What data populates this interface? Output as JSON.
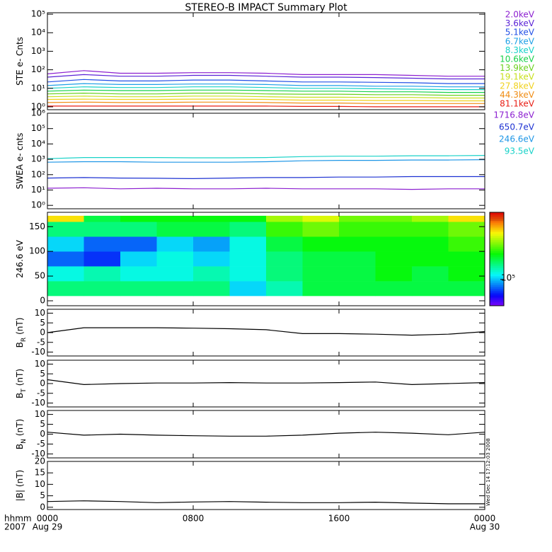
{
  "title": "STEREO-B IMPACT Summary Plot",
  "time_unit": "hhmm",
  "year": "2007",
  "timestamp": "Wed Dec 14 17:12:03 2008",
  "chart_data": [
    {
      "type": "line",
      "ylabel": "STE e- Cnts",
      "log": true,
      "ylim": [
        0.7,
        120000
      ],
      "yticks": [
        {
          "value": 1,
          "label": "10⁰"
        },
        {
          "value": 10,
          "label": "10¹"
        },
        {
          "value": 100,
          "label": "10²"
        },
        {
          "value": 1000,
          "label": "10³"
        },
        {
          "value": 10000,
          "label": "10⁴"
        },
        {
          "value": 100000,
          "label": "10⁵"
        }
      ],
      "xlim": [
        0,
        24
      ],
      "xticks": [
        0,
        8,
        16,
        24
      ],
      "x": [
        0,
        2,
        4,
        6,
        8,
        10,
        12,
        14,
        16,
        18,
        20,
        22,
        24
      ],
      "series": [
        {
          "name": "2.0keV",
          "color": "#8c1fd0",
          "values": [
            60,
            90,
            65,
            65,
            70,
            70,
            65,
            55,
            55,
            55,
            50,
            45,
            45
          ]
        },
        {
          "name": "3.6keV",
          "color": "#5a22d6",
          "values": [
            40,
            55,
            45,
            45,
            50,
            50,
            45,
            40,
            40,
            38,
            35,
            32,
            32
          ]
        },
        {
          "name": "5.1keV",
          "color": "#2250e6",
          "values": [
            22,
            30,
            25,
            25,
            28,
            28,
            25,
            22,
            22,
            21,
            20,
            18,
            18
          ]
        },
        {
          "name": "6.7keV",
          "color": "#1ea0e6",
          "values": [
            14,
            18,
            16,
            16,
            17,
            17,
            16,
            14,
            14,
            13,
            13,
            12,
            12
          ]
        },
        {
          "name": "8.3keV",
          "color": "#16d2c8",
          "values": [
            10,
            12,
            11,
            11,
            12,
            12,
            11,
            10,
            10,
            9.5,
            9,
            8.5,
            8.5
          ]
        },
        {
          "name": "10.6keV",
          "color": "#18d24a",
          "values": [
            7,
            8,
            7.5,
            7.5,
            8,
            8,
            7.5,
            7,
            7,
            6.5,
            6.5,
            6,
            6
          ]
        },
        {
          "name": "13.9keV",
          "color": "#6cd21e",
          "values": [
            5,
            5.5,
            5,
            5,
            5.5,
            5.5,
            5,
            4.8,
            4.8,
            4.5,
            4.5,
            4.2,
            4.2
          ]
        },
        {
          "name": "19.1keV",
          "color": "#c8e01e",
          "values": [
            3.5,
            3.8,
            3.5,
            3.5,
            3.8,
            3.8,
            3.5,
            3.3,
            3.3,
            3.2,
            3.2,
            3,
            3
          ]
        },
        {
          "name": "27.8keV",
          "color": "#f0d21e",
          "values": [
            2.5,
            2.6,
            2.5,
            2.5,
            2.6,
            2.6,
            2.5,
            2.3,
            2.3,
            2.2,
            2.2,
            2.1,
            2.1
          ]
        },
        {
          "name": "44.3keV",
          "color": "#f08c14",
          "values": [
            1.7,
            1.8,
            1.7,
            1.7,
            1.8,
            1.8,
            1.7,
            1.6,
            1.6,
            1.5,
            1.5,
            1.5,
            1.5
          ]
        },
        {
          "name": "81.1keV",
          "color": "#e81e14",
          "values": [
            1.1,
            1.1,
            1.1,
            1.1,
            1.1,
            1.1,
            1.1,
            1.05,
            1.05,
            1,
            1,
            1,
            1
          ]
        }
      ]
    },
    {
      "type": "line",
      "ylabel": "SWEA e- cnts",
      "log": true,
      "ylim": [
        0.6,
        1000000
      ],
      "yticks": [
        {
          "value": 1,
          "label": "10⁰"
        },
        {
          "value": 10,
          "label": "10¹"
        },
        {
          "value": 100,
          "label": "10²"
        },
        {
          "value": 1000,
          "label": "10³"
        },
        {
          "value": 10000,
          "label": "10⁴"
        },
        {
          "value": 100000,
          "label": "10⁵"
        },
        {
          "value": 1000000,
          "label": "10⁶"
        }
      ],
      "xlim": [
        0,
        24
      ],
      "xticks": [
        0,
        8,
        16,
        24
      ],
      "x": [
        0,
        2,
        4,
        6,
        8,
        10,
        12,
        14,
        16,
        18,
        20,
        22,
        24
      ],
      "series": [
        {
          "name": "1716.8eV",
          "color": "#8c1fd0",
          "values": [
            13,
            14,
            12,
            13,
            12,
            12,
            13,
            12,
            12,
            12,
            11,
            12,
            12
          ]
        },
        {
          "name": "650.7eV",
          "color": "#1e32d2",
          "values": [
            60,
            65,
            60,
            58,
            55,
            60,
            65,
            65,
            70,
            70,
            75,
            75,
            75
          ]
        },
        {
          "name": "246.6eV",
          "color": "#1e96e6",
          "values": [
            650,
            700,
            700,
            650,
            650,
            650,
            700,
            800,
            850,
            850,
            900,
            900,
            950
          ]
        },
        {
          "name": "93.5eV",
          "color": "#18d2c8",
          "values": [
            1100,
            1300,
            1300,
            1300,
            1250,
            1250,
            1300,
            1500,
            1600,
            1600,
            1700,
            1700,
            1800
          ]
        }
      ]
    },
    {
      "type": "heatmap",
      "ylabel": "246.6 eV",
      "ylim": [
        -10,
        179
      ],
      "yticks": [
        0,
        50,
        100,
        150
      ],
      "xlim": [
        0,
        24
      ],
      "xticks": [
        0,
        8,
        16,
        24
      ],
      "x_edges": [
        0,
        2,
        4,
        6,
        8,
        10,
        12,
        14,
        16,
        18,
        20,
        22,
        24
      ],
      "y_edges": [
        10,
        40,
        70,
        100,
        130,
        160,
        172
      ],
      "zlim": [
        60000,
        370000
      ],
      "zticks": [
        {
          "value": 100000,
          "label": "10⁵"
        }
      ],
      "values": [
        [
          136000,
          136000,
          136000,
          136000,
          136000,
          104000,
          124000,
          149000,
          149000,
          149000,
          149000,
          149000
        ],
        [
          114000,
          124000,
          114000,
          114000,
          124000,
          114000,
          136000,
          149000,
          149000,
          163000,
          149000,
          163000
        ],
        [
          86000,
          79000,
          104000,
          114000,
          104000,
          114000,
          136000,
          149000,
          149000,
          163000,
          163000,
          163000
        ],
        [
          104000,
          86000,
          86000,
          104000,
          95000,
          114000,
          149000,
          163000,
          163000,
          163000,
          163000,
          179000
        ],
        [
          136000,
          136000,
          136000,
          149000,
          149000,
          136000,
          179000,
          196000,
          179000,
          179000,
          179000,
          196000
        ],
        [
          257000,
          149000,
          163000,
          163000,
          163000,
          163000,
          214000,
          235000,
          196000,
          196000,
          214000,
          257000
        ]
      ]
    },
    {
      "type": "line",
      "ylabel": "B",
      "ylabel_sub": "R",
      "ylabel_unit": "(nT)",
      "ylim": [
        -12,
        12
      ],
      "yticks": [
        -10,
        -5,
        0,
        5,
        10
      ],
      "xlim": [
        0,
        24
      ],
      "xticks": [
        0,
        8,
        16,
        24
      ],
      "x": [
        0,
        2,
        4,
        6,
        8,
        10,
        12,
        14,
        16,
        18,
        20,
        22,
        24
      ],
      "series": [
        {
          "color": "#000000",
          "values": [
            0,
            2.5,
            2.5,
            2.5,
            2.3,
            2,
            1.5,
            -0.5,
            -0.5,
            -0.8,
            -1.3,
            -0.8,
            0.5
          ]
        }
      ]
    },
    {
      "type": "line",
      "ylabel": "B",
      "ylabel_sub": "T",
      "ylabel_unit": "(nT)",
      "ylim": [
        -12,
        12
      ],
      "yticks": [
        -10,
        -5,
        0,
        5,
        10
      ],
      "xlim": [
        0,
        24
      ],
      "xticks": [
        0,
        8,
        16,
        24
      ],
      "x": [
        0,
        2,
        4,
        6,
        8,
        10,
        12,
        14,
        16,
        18,
        20,
        22,
        24
      ],
      "series": [
        {
          "color": "#000000",
          "values": [
            2,
            -0.5,
            0,
            0.3,
            0.3,
            0.5,
            0.3,
            0.3,
            0.5,
            0.8,
            -0.5,
            0,
            0.5
          ]
        }
      ]
    },
    {
      "type": "line",
      "ylabel": "B",
      "ylabel_sub": "N",
      "ylabel_unit": "(nT)",
      "ylim": [
        -12,
        12
      ],
      "yticks": [
        -10,
        -5,
        0,
        5,
        10
      ],
      "xlim": [
        0,
        24
      ],
      "xticks": [
        0,
        8,
        16,
        24
      ],
      "x": [
        0,
        2,
        4,
        6,
        8,
        10,
        12,
        14,
        16,
        18,
        20,
        22,
        24
      ],
      "series": [
        {
          "color": "#000000",
          "values": [
            1,
            -0.5,
            0,
            -0.5,
            -0.8,
            -1,
            -1,
            -0.5,
            0.5,
            1,
            0.5,
            -0.3,
            1
          ]
        }
      ]
    },
    {
      "type": "line",
      "ylabel": "|B| (nT)",
      "ylim": [
        -1,
        20
      ],
      "yticks": [
        0,
        5,
        10,
        15,
        20
      ],
      "xlim": [
        0,
        24
      ],
      "xticks": [
        {
          "value": 0,
          "label": "0000"
        },
        {
          "value": 8,
          "label": "0800"
        },
        {
          "value": 16,
          "label": "1600"
        },
        {
          "value": 24,
          "label": "0000"
        }
      ],
      "xdates": [
        {
          "value": 0,
          "label": "Aug 29"
        },
        {
          "value": 24,
          "label": "Aug 30"
        }
      ],
      "x": [
        0,
        2,
        4,
        6,
        8,
        10,
        12,
        14,
        16,
        18,
        20,
        22,
        24
      ],
      "series": [
        {
          "color": "#000000",
          "values": [
            2.5,
            2.8,
            2.5,
            2,
            2.3,
            2.5,
            2.2,
            2,
            2,
            2.2,
            1.8,
            1.5,
            1.5
          ]
        }
      ]
    }
  ]
}
